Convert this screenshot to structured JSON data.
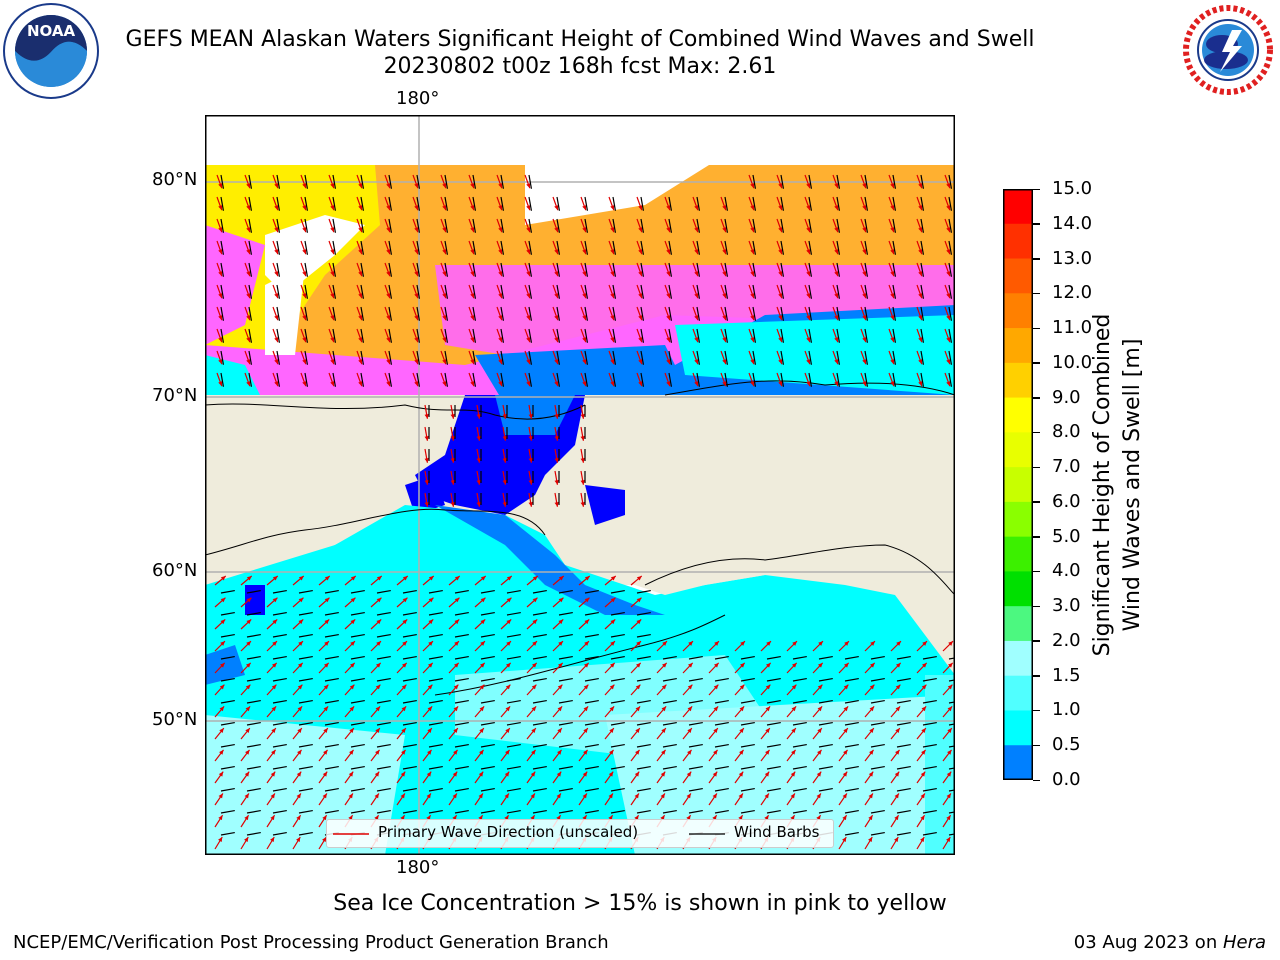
{
  "header": {
    "title_line1": "GEFS MEAN Alaskan Waters Significant Height of Combined Wind Waves and Swell",
    "title_line2": "20230802 t00z 168h fcst   Max: 2.61"
  },
  "logos": {
    "left": "NOAA",
    "right": "NATIONAL WEATHER SERVICE"
  },
  "map": {
    "lon_labels": [
      "180°",
      "180°"
    ],
    "lat_labels": [
      "80°N",
      "70°N",
      "60°N",
      "50°N"
    ],
    "colors": {
      "land": "#efecdc",
      "ice_pink": "#ff66ff",
      "ice_orange": "#ffb030",
      "ice_yellow": "#ffee00",
      "wave_cyan": "#00ffff",
      "wave_light": "#a0ffff",
      "wave_mid": "#50ffff",
      "wave_blue": "#0080ff",
      "wave_deep": "#0000ff",
      "arrow": "#e00000"
    }
  },
  "legend": {
    "wave_label": "Primary Wave Direction (unscaled)",
    "wind_label": "Wind Barbs"
  },
  "colorbar": {
    "title_line1": "Significant Height of Combined",
    "title_line2": "Wind Waves and Swell [m]",
    "ticks": [
      "15.0",
      "14.0",
      "13.0",
      "12.0",
      "11.0",
      "10.0",
      "9.0",
      "8.0",
      "7.0",
      "6.0",
      "5.0",
      "4.0",
      "3.0",
      "2.0",
      "1.5",
      "1.0",
      "0.5",
      "0.0"
    ],
    "colors": [
      "#ff0000",
      "#ff3000",
      "#ff5a00",
      "#ff8000",
      "#ffa800",
      "#ffd000",
      "#ffff00",
      "#e8ff00",
      "#c8ff00",
      "#8aff00",
      "#3cf000",
      "#00e000",
      "#4cf880",
      "#a0ffff",
      "#50ffff",
      "#00ffff",
      "#0080ff",
      "#0000ff"
    ]
  },
  "caption": "Sea Ice Concentration > 15% is shown in pink to yellow",
  "footer": {
    "left": "NCEP/EMC/Verification Post Processing Product Generation Branch",
    "right_date": "03 Aug 2023 on ",
    "right_host": "Hera"
  }
}
